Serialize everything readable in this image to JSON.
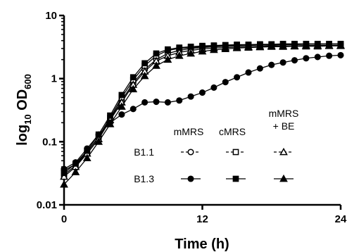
{
  "chart_data": {
    "type": "line",
    "xlabel": "Time (h)",
    "ylabel_main": "log",
    "ylabel_sub10": "10",
    "ylabel_od": " OD",
    "ylabel_sub600": "600",
    "xlim": [
      0,
      24
    ],
    "ylim": [
      0.01,
      10
    ],
    "y_scale": "log",
    "x_ticks": [
      0,
      12,
      24
    ],
    "x_tick_labels": [
      "0",
      "12",
      "24"
    ],
    "y_ticks": [
      0.01,
      0.1,
      1,
      10
    ],
    "y_tick_labels": [
      "0.01",
      "0.1",
      "1",
      "10"
    ],
    "grid": false,
    "legend": {
      "placement": "center-right",
      "column_headers": [
        "mMRS",
        "cMRS",
        "mMRS",
        "+ BE"
      ],
      "row_labels": [
        "B1.1",
        "B1.3"
      ]
    },
    "x": [
      0,
      1,
      2,
      3,
      4,
      5,
      6,
      7,
      8,
      9,
      10,
      11,
      12,
      13,
      14,
      15,
      16,
      17,
      18,
      19,
      20,
      21,
      22,
      23,
      24
    ],
    "series": [
      {
        "group": "B1.1",
        "medium": "mMRS",
        "marker": "circle-open",
        "values": [
          0.035,
          0.044,
          0.07,
          0.115,
          0.23,
          0.45,
          0.85,
          1.4,
          2.0,
          2.5,
          2.8,
          3.0,
          3.1,
          3.2,
          3.25,
          3.3,
          3.35,
          3.4,
          3.4,
          3.45,
          3.45,
          3.5,
          3.5,
          3.5,
          3.5
        ]
      },
      {
        "group": "B1.1",
        "medium": "cMRS",
        "marker": "square-open",
        "values": [
          0.03,
          0.042,
          0.068,
          0.12,
          0.24,
          0.5,
          0.95,
          1.6,
          2.3,
          2.8,
          3.0,
          3.1,
          3.2,
          3.3,
          3.35,
          3.4,
          3.4,
          3.45,
          3.45,
          3.5,
          3.5,
          3.5,
          3.5,
          3.5,
          3.5
        ]
      },
      {
        "group": "B1.1",
        "medium": "mMRS + BE",
        "marker": "triangle-open",
        "values": [
          0.028,
          0.04,
          0.065,
          0.11,
          0.22,
          0.42,
          0.8,
          1.3,
          1.9,
          2.3,
          2.6,
          2.8,
          2.95,
          3.05,
          3.1,
          3.15,
          3.2,
          3.25,
          3.3,
          3.3,
          3.3,
          3.35,
          3.35,
          3.35,
          3.35
        ]
      },
      {
        "group": "B1.3",
        "medium": "mMRS",
        "marker": "circle-filled",
        "values": [
          0.037,
          0.047,
          0.078,
          0.13,
          0.2,
          0.27,
          0.33,
          0.42,
          0.43,
          0.42,
          0.45,
          0.52,
          0.6,
          0.72,
          0.88,
          1.05,
          1.25,
          1.45,
          1.65,
          1.8,
          1.95,
          2.1,
          2.2,
          2.3,
          2.35
        ]
      },
      {
        "group": "B1.3",
        "medium": "cMRS",
        "marker": "square-filled",
        "values": [
          0.032,
          0.045,
          0.072,
          0.13,
          0.26,
          0.55,
          1.05,
          1.75,
          2.5,
          2.9,
          3.1,
          3.2,
          3.3,
          3.35,
          3.4,
          3.45,
          3.45,
          3.5,
          3.5,
          3.55,
          3.55,
          3.55,
          3.55,
          3.55,
          3.55
        ]
      },
      {
        "group": "B1.3",
        "medium": "mMRS + BE",
        "marker": "triangle-filled",
        "values": [
          0.021,
          0.033,
          0.055,
          0.1,
          0.19,
          0.36,
          0.68,
          1.1,
          1.6,
          2.0,
          2.3,
          2.5,
          2.7,
          2.85,
          2.95,
          3.05,
          3.1,
          3.15,
          3.2,
          3.2,
          3.25,
          3.25,
          3.25,
          3.3,
          3.3
        ]
      }
    ]
  }
}
